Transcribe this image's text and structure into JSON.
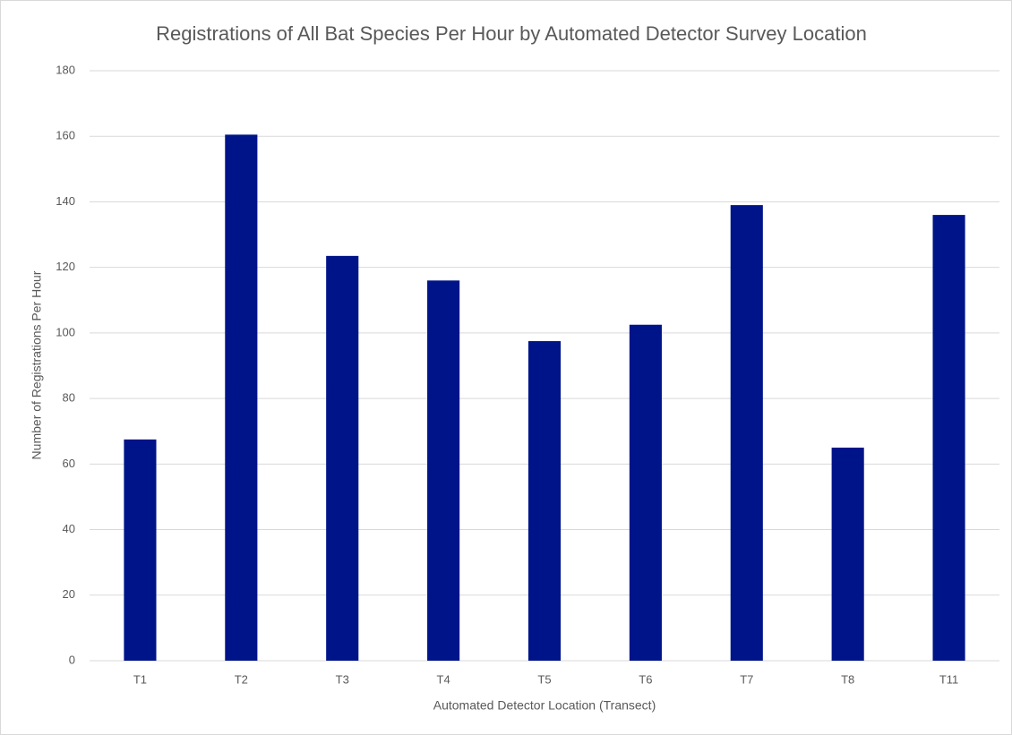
{
  "chart_data": {
    "type": "bar",
    "title": "Registrations of All Bat Species Per Hour by Automated Detector Survey Location",
    "x_label": "Automated Detector Location (Transect)",
    "y_label": "Number of Registrations Per Hour",
    "categories": [
      "T1",
      "T2",
      "T3",
      "T4",
      "T5",
      "T6",
      "T7",
      "T8",
      "T11"
    ],
    "values": [
      67.5,
      160.5,
      123.5,
      116,
      97.5,
      102.5,
      139,
      65,
      136
    ],
    "color": "#001489",
    "ylim": [
      0,
      180
    ],
    "yticks": [
      0,
      20,
      40,
      60,
      80,
      100,
      120,
      140,
      160,
      180
    ],
    "grid": true
  }
}
